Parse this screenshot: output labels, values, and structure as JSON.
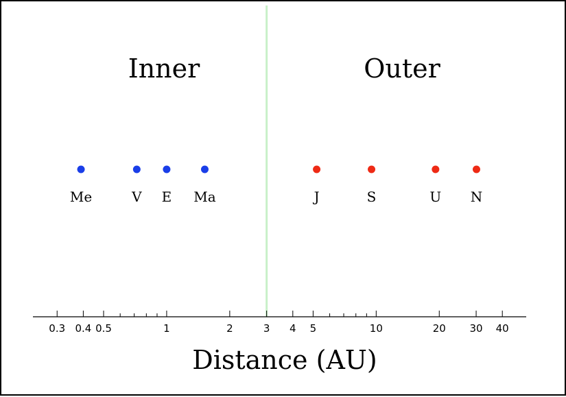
{
  "chart_data": {
    "type": "scatter",
    "title": "",
    "xlabel": "Distance (AU)",
    "ylabel": "",
    "x_scale": "log",
    "xlim": [
      0.23,
      52
    ],
    "grid": false,
    "divider_x": 3,
    "colors": {
      "inner": "#1a3ee8",
      "outer": "#ee2a15",
      "divider": "#c8f0c8"
    },
    "group_labels": {
      "inner": "Inner",
      "outer": "Outer"
    },
    "tick_labels": [
      {
        "value": 0.3,
        "label": "0.3"
      },
      {
        "value": 0.4,
        "label": "0.4"
      },
      {
        "value": 0.5,
        "label": "0.5"
      },
      {
        "value": 1,
        "label": "1"
      },
      {
        "value": 2,
        "label": "2"
      },
      {
        "value": 3,
        "label": "3"
      },
      {
        "value": 4,
        "label": "4"
      },
      {
        "value": 5,
        "label": "5"
      },
      {
        "value": 10,
        "label": "10"
      },
      {
        "value": 20,
        "label": "20"
      },
      {
        "value": 30,
        "label": "30"
      },
      {
        "value": 40,
        "label": "40"
      }
    ],
    "minor_ticks": [
      0.6,
      0.7,
      0.8,
      0.9,
      6,
      7,
      8,
      9
    ],
    "series": [
      {
        "group": "inner",
        "points": [
          {
            "label": "Me",
            "x": 0.39
          },
          {
            "label": "V",
            "x": 0.72
          },
          {
            "label": "E",
            "x": 1.0
          },
          {
            "label": "Ma",
            "x": 1.52
          }
        ]
      },
      {
        "group": "outer",
        "points": [
          {
            "label": "J",
            "x": 5.2
          },
          {
            "label": "S",
            "x": 9.5
          },
          {
            "label": "U",
            "x": 19.2
          },
          {
            "label": "N",
            "x": 30.1
          }
        ]
      }
    ]
  }
}
